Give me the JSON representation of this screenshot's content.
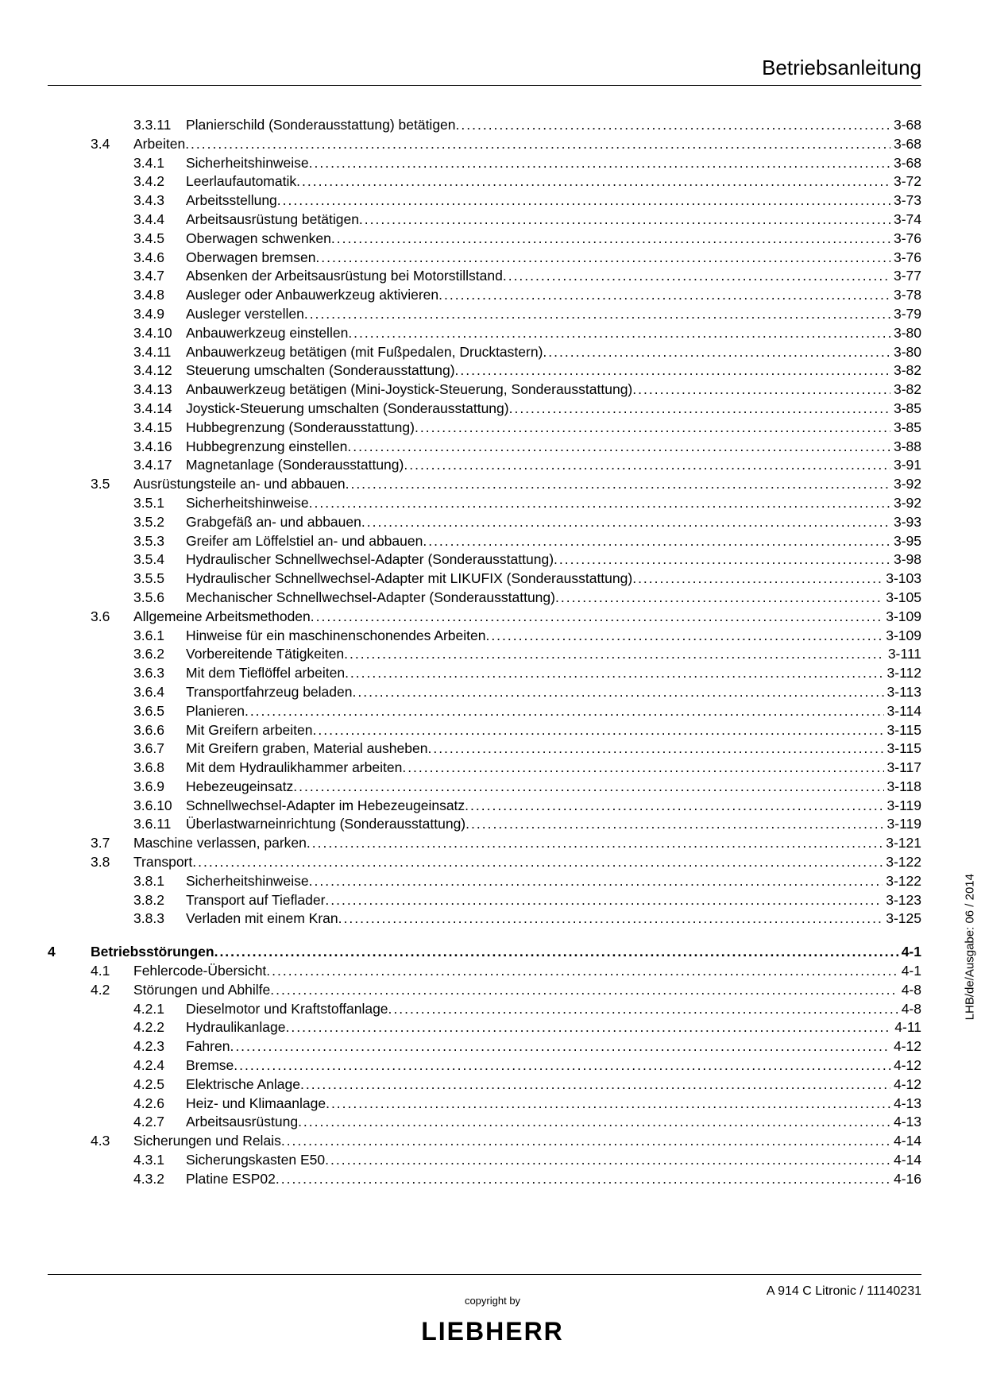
{
  "header": {
    "title": "Betriebsanleitung"
  },
  "side_text": "LHB/de/Ausgabe: 06 / 2014",
  "footer": {
    "copyright": "copyright by",
    "brand": "LIEBHERR",
    "doc_id": "A 914 C Litronic / 11140231"
  },
  "toc": [
    {
      "lvl": 3,
      "n": "3.3.11",
      "t": "Planierschild (Sonderausstattung) betätigen",
      "p": "3-68"
    },
    {
      "lvl": 2,
      "n": "3.4",
      "t": "Arbeiten",
      "p": "3-68"
    },
    {
      "lvl": 3,
      "n": "3.4.1",
      "t": "Sicherheitshinweise",
      "p": "3-68"
    },
    {
      "lvl": 3,
      "n": "3.4.2",
      "t": "Leerlaufautomatik",
      "p": "3-72"
    },
    {
      "lvl": 3,
      "n": "3.4.3",
      "t": "Arbeitsstellung",
      "p": "3-73"
    },
    {
      "lvl": 3,
      "n": "3.4.4",
      "t": "Arbeitsausrüstung betätigen",
      "p": "3-74"
    },
    {
      "lvl": 3,
      "n": "3.4.5",
      "t": "Oberwagen schwenken",
      "p": "3-76"
    },
    {
      "lvl": 3,
      "n": "3.4.6",
      "t": "Oberwagen bremsen",
      "p": "3-76"
    },
    {
      "lvl": 3,
      "n": "3.4.7",
      "t": "Absenken der Arbeitsausrüstung bei Motorstillstand",
      "p": "3-77"
    },
    {
      "lvl": 3,
      "n": "3.4.8",
      "t": "Ausleger oder Anbauwerkzeug aktivieren",
      "p": "3-78"
    },
    {
      "lvl": 3,
      "n": "3.4.9",
      "t": "Ausleger verstellen",
      "p": "3-79"
    },
    {
      "lvl": 3,
      "n": "3.4.10",
      "t": "Anbauwerkzeug einstellen",
      "p": "3-80"
    },
    {
      "lvl": 3,
      "n": "3.4.11",
      "t": "Anbauwerkzeug betätigen (mit Fußpedalen, Drucktastern)",
      "p": "3-80"
    },
    {
      "lvl": 3,
      "n": "3.4.12",
      "t": "Steuerung umschalten (Sonderausstattung)",
      "p": "3-82"
    },
    {
      "lvl": 3,
      "n": "3.4.13",
      "t": "Anbauwerkzeug betätigen (Mini-Joystick-Steuerung, Sonderausstattung)",
      "p": "3-82"
    },
    {
      "lvl": 3,
      "n": "3.4.14",
      "t": "Joystick-Steuerung umschalten (Sonderausstattung)",
      "p": "3-85"
    },
    {
      "lvl": 3,
      "n": "3.4.15",
      "t": "Hubbegrenzung (Sonderausstattung)",
      "p": "3-85"
    },
    {
      "lvl": 3,
      "n": "3.4.16",
      "t": "Hubbegrenzung einstellen",
      "p": "3-88"
    },
    {
      "lvl": 3,
      "n": "3.4.17",
      "t": "Magnetanlage (Sonderausstattung)",
      "p": "3-91"
    },
    {
      "lvl": 2,
      "n": "3.5",
      "t": "Ausrüstungsteile an- und abbauen",
      "p": "3-92"
    },
    {
      "lvl": 3,
      "n": "3.5.1",
      "t": "Sicherheitshinweise",
      "p": "3-92"
    },
    {
      "lvl": 3,
      "n": "3.5.2",
      "t": "Grabgefäß an- und abbauen",
      "p": "3-93"
    },
    {
      "lvl": 3,
      "n": "3.5.3",
      "t": "Greifer am Löffelstiel an- und abbauen",
      "p": "3-95"
    },
    {
      "lvl": 3,
      "n": "3.5.4",
      "t": "Hydraulischer Schnellwechsel-Adapter (Sonderausstattung)",
      "p": "3-98"
    },
    {
      "lvl": 3,
      "n": "3.5.5",
      "t": "Hydraulischer Schnellwechsel-Adapter mit LIKUFIX (Sonderausstattung)",
      "p": "3-103"
    },
    {
      "lvl": 3,
      "n": "3.5.6",
      "t": "Mechanischer Schnellwechsel-Adapter (Sonderausstattung)",
      "p": "3-105"
    },
    {
      "lvl": 2,
      "n": "3.6",
      "t": "Allgemeine Arbeitsmethoden",
      "p": "3-109"
    },
    {
      "lvl": 3,
      "n": "3.6.1",
      "t": "Hinweise für ein maschinenschonendes Arbeiten",
      "p": "3-109"
    },
    {
      "lvl": 3,
      "n": "3.6.2",
      "t": "Vorbereitende Tätigkeiten",
      "p": "3-111"
    },
    {
      "lvl": 3,
      "n": "3.6.3",
      "t": "Mit dem Tieflöffel arbeiten",
      "p": "3-112"
    },
    {
      "lvl": 3,
      "n": "3.6.4",
      "t": "Transportfahrzeug beladen",
      "p": "3-113"
    },
    {
      "lvl": 3,
      "n": "3.6.5",
      "t": "Planieren",
      "p": "3-114"
    },
    {
      "lvl": 3,
      "n": "3.6.6",
      "t": "Mit Greifern arbeiten",
      "p": "3-115"
    },
    {
      "lvl": 3,
      "n": "3.6.7",
      "t": "Mit Greifern graben, Material ausheben",
      "p": "3-115"
    },
    {
      "lvl": 3,
      "n": "3.6.8",
      "t": "Mit dem Hydraulikhammer arbeiten",
      "p": "3-117"
    },
    {
      "lvl": 3,
      "n": "3.6.9",
      "t": "Hebezeugeinsatz",
      "p": "3-118"
    },
    {
      "lvl": 3,
      "n": "3.6.10",
      "t": "Schnellwechsel-Adapter im Hebezeugeinsatz",
      "p": "3-119"
    },
    {
      "lvl": 3,
      "n": "3.6.11",
      "t": "Überlastwarneinrichtung (Sonderausstattung)",
      "p": "3-119"
    },
    {
      "lvl": 2,
      "n": "3.7",
      "t": "Maschine verlassen, parken",
      "p": "3-121"
    },
    {
      "lvl": 2,
      "n": "3.8",
      "t": "Transport",
      "p": "3-122"
    },
    {
      "lvl": 3,
      "n": "3.8.1",
      "t": "Sicherheitshinweise",
      "p": "3-122"
    },
    {
      "lvl": 3,
      "n": "3.8.2",
      "t": "Transport auf Tieflader",
      "p": "3-123"
    },
    {
      "lvl": 3,
      "n": "3.8.3",
      "t": "Verladen mit einem Kran",
      "p": "3-125"
    },
    {
      "lvl": 0,
      "gap": true
    },
    {
      "lvl": 1,
      "n": "4",
      "t": "Betriebsstörungen",
      "p": "4-1",
      "bold": true
    },
    {
      "lvl": 2,
      "n": "4.1",
      "t": "Fehlercode-Übersicht",
      "p": "4-1"
    },
    {
      "lvl": 2,
      "n": "4.2",
      "t": "Störungen und Abhilfe",
      "p": "4-8"
    },
    {
      "lvl": 3,
      "n": "4.2.1",
      "t": "Dieselmotor und Kraftstoffanlage",
      "p": "4-8"
    },
    {
      "lvl": 3,
      "n": "4.2.2",
      "t": "Hydraulikanlage",
      "p": "4-11"
    },
    {
      "lvl": 3,
      "n": "4.2.3",
      "t": "Fahren",
      "p": "4-12"
    },
    {
      "lvl": 3,
      "n": "4.2.4",
      "t": "Bremse",
      "p": "4-12"
    },
    {
      "lvl": 3,
      "n": "4.2.5",
      "t": "Elektrische Anlage",
      "p": "4-12"
    },
    {
      "lvl": 3,
      "n": "4.2.6",
      "t": "Heiz- und Klimaanlage",
      "p": "4-13"
    },
    {
      "lvl": 3,
      "n": "4.2.7",
      "t": "Arbeitsausrüstung",
      "p": "4-13"
    },
    {
      "lvl": 2,
      "n": "4.3",
      "t": "Sicherungen und Relais",
      "p": "4-14"
    },
    {
      "lvl": 3,
      "n": "4.3.1",
      "t": "Sicherungskasten E50",
      "p": "4-14"
    },
    {
      "lvl": 3,
      "n": "4.3.2",
      "t": "Platine ESP02",
      "p": "4-16"
    }
  ]
}
